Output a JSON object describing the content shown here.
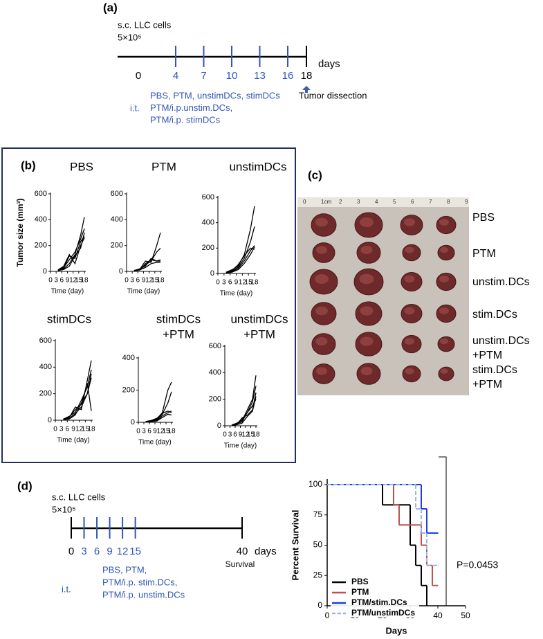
{
  "panel_a": {
    "label": "(a)",
    "cells": "s.c. LLC cells",
    "dose": "5×10⁵",
    "days": [
      0,
      4,
      7,
      10,
      13,
      16,
      18
    ],
    "unit": "days",
    "dissection": "Tumor dissection",
    "route": "i.t.",
    "treatments": [
      "PBS, PTM, unstimDCs, stimDCs",
      "PTM/i.p.unstim.DCs,",
      "PTM/i.p. stimDCs"
    ]
  },
  "panel_b": {
    "label": "(b)"
  },
  "panel_c": {
    "label": "(c)",
    "ruler": [
      "0",
      "1cm",
      "2",
      "3",
      "4",
      "5",
      "6",
      "7",
      "8",
      "9"
    ],
    "groups": [
      [
        "PBS"
      ],
      [
        "PTM"
      ],
      [
        "unstim.DCs"
      ],
      [
        "stim.DCs"
      ],
      [
        "unstim.DCs",
        "+PTM"
      ],
      [
        "stim.DCs",
        "+PTM"
      ]
    ]
  },
  "panel_d": {
    "label": "(d)",
    "cells": "s.c. LLC cells",
    "dose": "5×10⁵",
    "days": [
      0,
      3,
      6,
      9,
      12,
      15,
      40
    ],
    "unit": "days",
    "endpoint": "Survival",
    "route": "i.t.",
    "treatments": [
      "PBS, PTM,",
      "PTM/i.p. stim.DCs,",
      "PTM/i.p. unstim.DCs"
    ]
  },
  "chart_data": [
    {
      "type": "line",
      "title": "PBS",
      "xlabel": "Time (day)",
      "ylabel": "Tumor size (mm³)",
      "x": [
        4,
        7,
        10,
        13,
        16,
        18
      ],
      "xlim": [
        0,
        18
      ],
      "xticks": [
        0,
        3,
        6,
        9,
        12,
        15,
        18
      ],
      "ylim": [
        0,
        600
      ],
      "yticks": [
        0,
        200,
        400,
        600
      ],
      "series": [
        {
          "color": "#000000",
          "values": [
            8,
            20,
            60,
            130,
            280,
            420
          ]
        },
        {
          "color": "#000000",
          "values": [
            10,
            30,
            90,
            150,
            250,
            330
          ]
        },
        {
          "color": "#000000",
          "values": [
            5,
            25,
            120,
            100,
            230,
            270
          ]
        },
        {
          "color": "#000000",
          "values": [
            12,
            40,
            130,
            60,
            200,
            260
          ]
        },
        {
          "color": "#000000",
          "values": [
            6,
            15,
            40,
            120,
            180,
            300
          ]
        }
      ]
    },
    {
      "type": "line",
      "title": "PTM",
      "xlabel": "Time (day)",
      "x": [
        4,
        7,
        10,
        13,
        16,
        18
      ],
      "xlim": [
        0,
        18
      ],
      "xticks": [
        0,
        3,
        6,
        9,
        12,
        15,
        18
      ],
      "ylim": [
        0,
        600
      ],
      "yticks": [
        0,
        200,
        400,
        600
      ],
      "series": [
        {
          "color": "#000000",
          "values": [
            5,
            10,
            60,
            90,
            80,
            90
          ]
        },
        {
          "color": "#000000",
          "values": [
            8,
            15,
            80,
            70,
            200,
            300
          ]
        },
        {
          "color": "#000000",
          "values": [
            6,
            20,
            40,
            100,
            80,
            80
          ]
        },
        {
          "color": "#000000",
          "values": [
            4,
            12,
            30,
            60,
            70,
            70
          ]
        },
        {
          "color": "#000000",
          "values": [
            5,
            18,
            50,
            80,
            150,
            180
          ]
        }
      ]
    },
    {
      "type": "line",
      "title": "unstimDCs",
      "xlabel": "Time (day)",
      "x": [
        4,
        7,
        10,
        13,
        16,
        18
      ],
      "xlim": [
        0,
        18
      ],
      "xticks": [
        0,
        3,
        6,
        9,
        12,
        15,
        18
      ],
      "ylim": [
        0,
        600
      ],
      "yticks": [
        0,
        200,
        400,
        600
      ],
      "series": [
        {
          "color": "#000000",
          "values": [
            10,
            30,
            60,
            150,
            350,
            530
          ]
        },
        {
          "color": "#000000",
          "values": [
            8,
            20,
            50,
            120,
            250,
            370
          ]
        },
        {
          "color": "#000000",
          "values": [
            5,
            15,
            40,
            100,
            180,
            220
          ]
        },
        {
          "color": "#000000",
          "values": [
            6,
            25,
            70,
            140,
            200,
            190
          ]
        },
        {
          "color": "#000000",
          "values": [
            4,
            10,
            30,
            80,
            150,
            210
          ]
        }
      ]
    },
    {
      "type": "line",
      "title": "stimDCs",
      "xlabel": "Time (day)",
      "x": [
        4,
        7,
        10,
        13,
        16,
        18
      ],
      "xlim": [
        0,
        18
      ],
      "xticks": [
        0,
        3,
        6,
        9,
        12,
        15,
        18
      ],
      "ylim": [
        0,
        600
      ],
      "yticks": [
        0,
        200,
        400,
        600
      ],
      "series": [
        {
          "color": "#000000",
          "values": [
            10,
            20,
            100,
            80,
            300,
            450
          ]
        },
        {
          "color": "#000000",
          "values": [
            8,
            30,
            60,
            150,
            250,
            380
          ]
        },
        {
          "color": "#000000",
          "values": [
            5,
            15,
            50,
            100,
            200,
            320
          ]
        },
        {
          "color": "#000000",
          "values": [
            6,
            25,
            80,
            120,
            280,
            70
          ]
        },
        {
          "color": "#000000",
          "values": [
            4,
            10,
            40,
            130,
            200,
            350
          ]
        }
      ]
    },
    {
      "type": "line",
      "title": [
        "stimDCs",
        "+PTM"
      ],
      "xlabel": "Time (day)",
      "x": [
        4,
        7,
        10,
        13,
        16,
        18
      ],
      "xlim": [
        0,
        18
      ],
      "xticks": [
        0,
        3,
        6,
        9,
        12,
        15,
        18
      ],
      "ylim": [
        0,
        400
      ],
      "yticks": [
        0,
        200,
        400
      ],
      "series": [
        {
          "color": "#000000",
          "values": [
            5,
            10,
            20,
            60,
            200,
            250
          ]
        },
        {
          "color": "#000000",
          "values": [
            4,
            8,
            15,
            50,
            120,
            190
          ]
        },
        {
          "color": "#000000",
          "values": [
            3,
            6,
            10,
            40,
            60,
            70
          ]
        },
        {
          "color": "#000000",
          "values": [
            5,
            12,
            25,
            55,
            70,
            60
          ]
        },
        {
          "color": "#000000",
          "values": [
            2,
            5,
            8,
            30,
            50,
            45
          ]
        }
      ]
    },
    {
      "type": "line",
      "title": [
        "unstimDCs",
        "+PTM"
      ],
      "xlabel": "Time (day)",
      "x": [
        4,
        7,
        10,
        13,
        16,
        18
      ],
      "xlim": [
        0,
        18
      ],
      "xticks": [
        0,
        3,
        6,
        9,
        12,
        15,
        18
      ],
      "ylim": [
        0,
        600
      ],
      "yticks": [
        0,
        200,
        400,
        600
      ],
      "series": [
        {
          "color": "#000000",
          "values": [
            5,
            20,
            40,
            120,
            200,
            380
          ]
        },
        {
          "color": "#000000",
          "values": [
            4,
            15,
            30,
            100,
            180,
            300
          ]
        },
        {
          "color": "#000000",
          "values": [
            3,
            10,
            60,
            80,
            120,
            250
          ]
        },
        {
          "color": "#000000",
          "values": [
            6,
            18,
            50,
            100,
            150,
            200
          ]
        },
        {
          "color": "#000000",
          "values": [
            2,
            8,
            20,
            70,
            110,
            220
          ]
        }
      ]
    },
    {
      "type": "line",
      "drawstyle": "steps-post",
      "xlabel": "Days",
      "ylabel": "Percent Survival",
      "xlim": [
        0,
        50
      ],
      "xticks": [
        0,
        10,
        20,
        30,
        40,
        50
      ],
      "ylim": [
        0,
        100
      ],
      "yticks": [
        0,
        25,
        50,
        75,
        100
      ],
      "legend": "lower left",
      "annotation": "P=0.0453",
      "series": [
        {
          "name": "PBS",
          "color": "#000000",
          "x": [
            0,
            20,
            30,
            32,
            34,
            36
          ],
          "values": [
            100,
            83.3,
            50,
            33.3,
            16.7,
            0
          ]
        },
        {
          "name": "PTM",
          "color": "#c0504d",
          "x": [
            0,
            24,
            26,
            34,
            36,
            38,
            40
          ],
          "values": [
            100,
            83.3,
            66.7,
            50,
            33.3,
            16.7,
            16.7
          ]
        },
        {
          "name": "PTM/stim.DCs",
          "color": "#1f3fd6",
          "x": [
            0,
            34,
            36,
            40
          ],
          "values": [
            100,
            80,
            60,
            60
          ]
        },
        {
          "name": "PTM/unstimDCs",
          "color": "#9db3e8",
          "dash": true,
          "x": [
            0,
            32,
            34,
            36,
            40
          ],
          "values": [
            100,
            80,
            60,
            33.3,
            33.3
          ]
        }
      ]
    }
  ]
}
